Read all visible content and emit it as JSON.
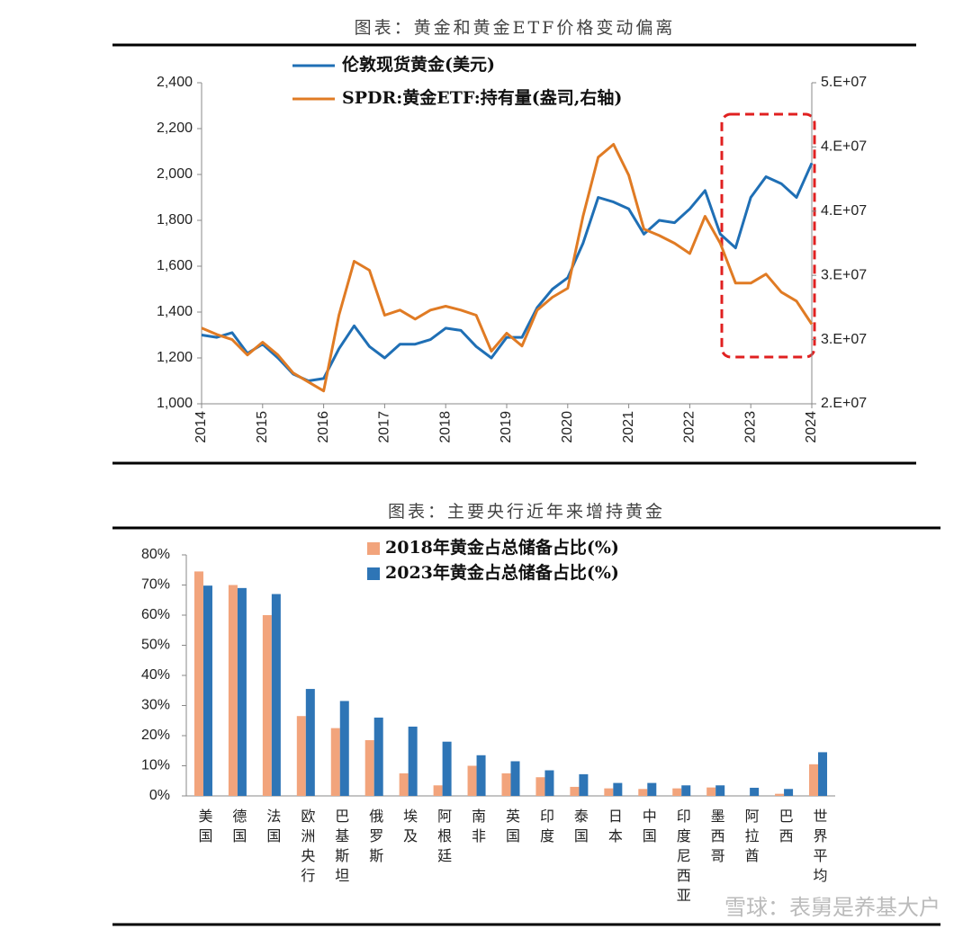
{
  "chart_data": [
    {
      "type": "line",
      "title": "图表：黄金和黄金ETF价格变动偏离",
      "x": [
        2014,
        2014.25,
        2014.5,
        2014.75,
        2015,
        2015.25,
        2015.5,
        2015.75,
        2016,
        2016.25,
        2016.5,
        2016.75,
        2017,
        2017.25,
        2017.5,
        2017.75,
        2018,
        2018.25,
        2018.5,
        2018.75,
        2019,
        2019.25,
        2019.5,
        2019.75,
        2020,
        2020.25,
        2020.5,
        2020.75,
        2021,
        2021.25,
        2021.5,
        2021.75,
        2022,
        2022.25,
        2022.5,
        2022.75,
        2023,
        2023.25,
        2023.5,
        2023.75,
        2024
      ],
      "xlim": [
        2014,
        2024
      ],
      "xticks": [
        2014,
        2015,
        2016,
        2017,
        2018,
        2019,
        2020,
        2021,
        2022,
        2023,
        2024
      ],
      "ylim": [
        1000,
        2400
      ],
      "yticks": [
        {
          "value": 1000,
          "label": "1,000"
        },
        {
          "value": 1200,
          "label": "1,200"
        },
        {
          "value": 1400,
          "label": "1,400"
        },
        {
          "value": 1600,
          "label": "1,600"
        },
        {
          "value": 1800,
          "label": "1,800"
        },
        {
          "value": 2000,
          "label": "2,000"
        },
        {
          "value": 2200,
          "label": "2,200"
        },
        {
          "value": 2400,
          "label": "2,400"
        }
      ],
      "y2lim": [
        20000000,
        45000000
      ],
      "y2ticks": [
        {
          "value": 20000000,
          "label": "2.E+07"
        },
        {
          "value": 25000000,
          "label": "3.E+07"
        },
        {
          "value": 30000000,
          "label": "3.E+07"
        },
        {
          "value": 35000000,
          "label": "4.E+07"
        },
        {
          "value": 40000000,
          "label": "4.E+07"
        },
        {
          "value": 45000000,
          "label": "5.E+07"
        }
      ],
      "series": [
        {
          "name": "伦敦现货黄金(美元)",
          "color": "#1f6fb5",
          "values": [
            1300,
            1290,
            1310,
            1220,
            1260,
            1200,
            1130,
            1100,
            1110,
            1240,
            1340,
            1250,
            1200,
            1260,
            1260,
            1280,
            1330,
            1320,
            1250,
            1200,
            1290,
            1290,
            1420,
            1500,
            1550,
            1700,
            1900,
            1880,
            1850,
            1740,
            1800,
            1790,
            1850,
            1930,
            1740,
            1680,
            1900,
            1990,
            1960,
            1900,
            2050
          ]
        },
        {
          "name": "SPDR:黄金ETF:持有量(盎司,右轴)",
          "color": "#e07b24",
          "axis": "y2",
          "values": [
            25900000,
            25400000,
            25000000,
            23800000,
            24800000,
            23800000,
            22400000,
            21700000,
            21000000,
            26900000,
            31100000,
            30400000,
            26900000,
            27300000,
            26600000,
            27300000,
            27600000,
            27300000,
            26900000,
            24100000,
            25500000,
            24500000,
            27300000,
            28300000,
            29000000,
            34600000,
            39200000,
            40200000,
            37800000,
            33600000,
            33100000,
            32500000,
            31700000,
            34600000,
            32500000,
            29400000,
            29400000,
            30100000,
            28700000,
            28000000,
            26200000
          ]
        }
      ]
    },
    {
      "type": "bar",
      "title": "图表：主要央行近年来增持黄金",
      "categories": [
        "美国",
        "德国",
        "法国",
        "欧洲央行",
        "巴基斯坦",
        "俄罗斯",
        "埃及",
        "阿根廷",
        "南非",
        "英国",
        "印度",
        "泰国",
        "日本",
        "中国",
        "印度尼西亚",
        "墨西哥",
        "阿拉酋",
        "巴西",
        "世界平均"
      ],
      "ylim": [
        0,
        80
      ],
      "yticks": [
        {
          "value": 0,
          "label": "0%"
        },
        {
          "value": 10,
          "label": "10%"
        },
        {
          "value": 20,
          "label": "20%"
        },
        {
          "value": 30,
          "label": "30%"
        },
        {
          "value": 40,
          "label": "40%"
        },
        {
          "value": 50,
          "label": "50%"
        },
        {
          "value": 60,
          "label": "60%"
        },
        {
          "value": 70,
          "label": "70%"
        },
        {
          "value": 80,
          "label": "80%"
        }
      ],
      "series": [
        {
          "name": "2018年黄金占总储备占比(%)",
          "color": "#f2a47c",
          "values": [
            74.5,
            70,
            60,
            26.5,
            22.5,
            18.5,
            7.5,
            3.5,
            10,
            7.5,
            6.2,
            3,
            2.5,
            2.3,
            2.5,
            2.8,
            0,
            0.7,
            10.5
          ]
        },
        {
          "name": "2023年黄金占总储备占比(%)",
          "color": "#2e75b6",
          "values": [
            69.8,
            69,
            67,
            35.5,
            31.5,
            26,
            23,
            18,
            13.5,
            11.5,
            8.5,
            7.2,
            4.3,
            4.3,
            3.5,
            3.5,
            2.7,
            2.3,
            14.5
          ]
        }
      ]
    }
  ],
  "watermark": "雪球：表舅是养基大户"
}
